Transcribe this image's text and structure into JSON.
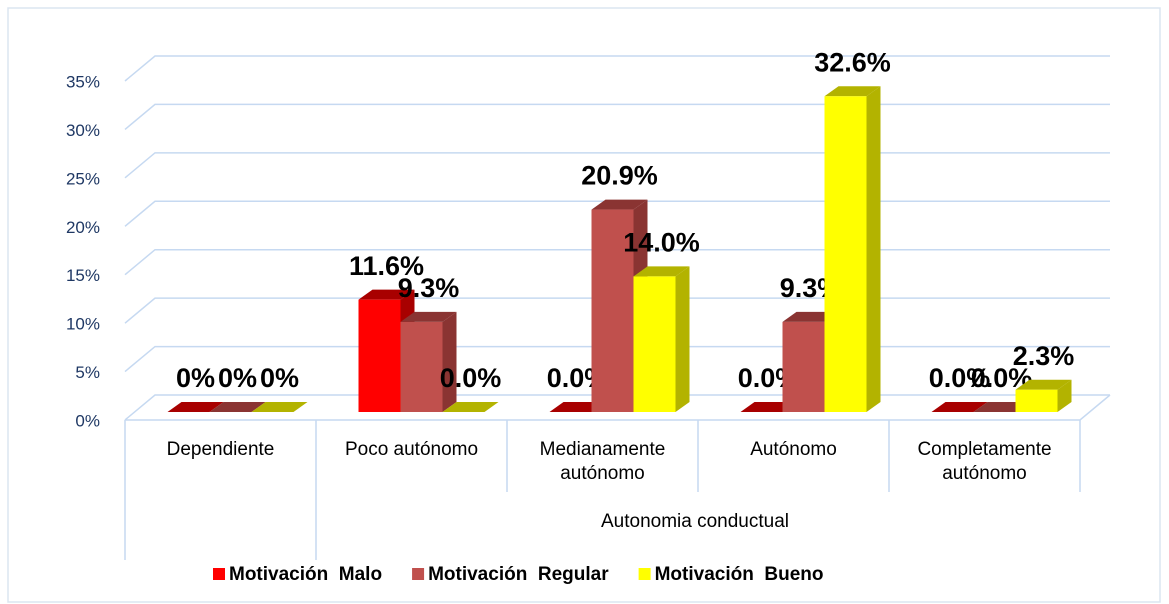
{
  "chart_data": {
    "type": "bar3d",
    "x_label": "Autonomia conductual",
    "categories": [
      "Dependiente",
      "Poco autónomo",
      "Medianamente autónomo",
      "Autónomo",
      "Completamente autónomo"
    ],
    "series": [
      {
        "name": "Motivación  Malo",
        "color": "#ff0000",
        "side": "#a80000",
        "values": [
          0,
          11.6,
          0,
          0,
          0
        ],
        "value_labels": [
          "0%",
          "11.6%",
          "0.0%",
          "0.0%",
          "0.0%"
        ]
      },
      {
        "name": "Motivación  Regular",
        "color": "#c0504d",
        "side": "#8a3432",
        "values": [
          0,
          9.3,
          20.9,
          9.3,
          0
        ],
        "value_labels": [
          "0%",
          "9.3%",
          "20.9%",
          "9.3%",
          "0.0%"
        ]
      },
      {
        "name": "Motivación  Bueno",
        "color": "#ffff00",
        "side": "#b3b300",
        "values": [
          0,
          0,
          14.0,
          32.6,
          2.3
        ],
        "value_labels": [
          "0%",
          "0.0%",
          "14.0%",
          "32.6%",
          "2.3%"
        ]
      }
    ],
    "ylim": [
      0,
      35
    ],
    "yticks": [
      {
        "value": 0,
        "label": "0%"
      },
      {
        "value": 5,
        "label": "5%"
      },
      {
        "value": 10,
        "label": "10%"
      },
      {
        "value": 15,
        "label": "15%"
      },
      {
        "value": 20,
        "label": "20%"
      },
      {
        "value": 25,
        "label": "25%"
      },
      {
        "value": 30,
        "label": "30%"
      },
      {
        "value": 35,
        "label": "35%"
      }
    ],
    "grid": true
  }
}
